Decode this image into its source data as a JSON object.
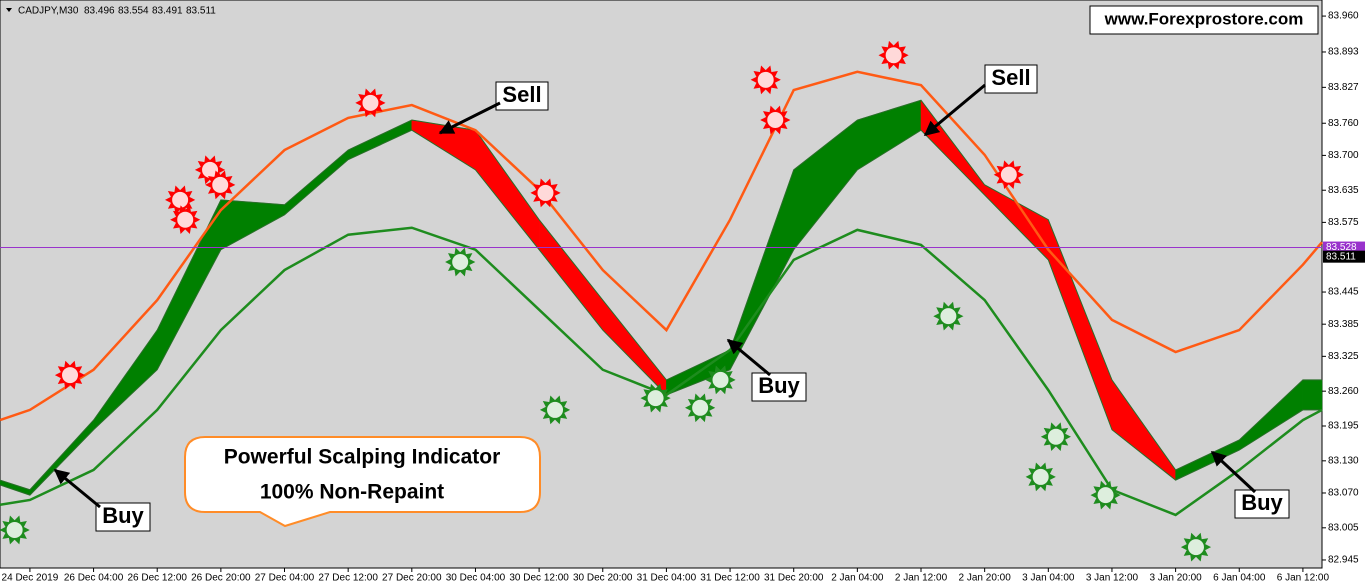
{
  "header": {
    "symbol": "CADJPY,M30",
    "open": 83.496,
    "high": 83.554,
    "low": 83.491,
    "close": 83.511
  },
  "chart_data": {
    "type": "indicator",
    "watermark": "www.Forexprostore.com",
    "annotations": {
      "sell_1": "Sell",
      "sell_2": "Sell",
      "buy_1": "Buy",
      "buy_2": "Buy",
      "buy_3": "Buy",
      "promo_line_1": "Powerful Scalping Indicator",
      "promo_line_2": "100% Non-Repaint"
    },
    "xlim": [
      -0.47,
      20.3
    ],
    "ylim": [
      82.93,
      83.99
    ],
    "xticks": [
      {
        "value": 0,
        "label": "24 Dec 2019"
      },
      {
        "value": 1,
        "label": "26 Dec 04:00"
      },
      {
        "value": 2,
        "label": "26 Dec 12:00"
      },
      {
        "value": 3,
        "label": "26 Dec 20:00"
      },
      {
        "value": 4,
        "label": "27 Dec 04:00"
      },
      {
        "value": 5,
        "label": "27 Dec 12:00"
      },
      {
        "value": 6,
        "label": "27 Dec 20:00"
      },
      {
        "value": 7,
        "label": "30 Dec 04:00"
      },
      {
        "value": 8,
        "label": "30 Dec 12:00"
      },
      {
        "value": 9,
        "label": "30 Dec 20:00"
      },
      {
        "value": 10,
        "label": "31 Dec 04:00"
      },
      {
        "value": 11,
        "label": "31 Dec 12:00"
      },
      {
        "value": 12,
        "label": "31 Dec 20:00"
      },
      {
        "value": 13,
        "label": "2 Jan 04:00"
      },
      {
        "value": 14,
        "label": "2 Jan 12:00"
      },
      {
        "value": 15,
        "label": "2 Jan 20:00"
      },
      {
        "value": 16,
        "label": "3 Jan 04:00"
      },
      {
        "value": 17,
        "label": "3 Jan 12:00"
      },
      {
        "value": 18,
        "label": "3 Jan 20:00"
      },
      {
        "value": 19,
        "label": "6 Jan 04:00"
      },
      {
        "value": 20,
        "label": "6 Jan 12:00"
      }
    ],
    "yticks": [
      {
        "value": 83.96,
        "label": "83.960"
      },
      83.893,
      83.827,
      {
        "value": 83.76,
        "label": "83.760"
      },
      {
        "value": 83.7,
        "label": "83.700"
      },
      83.635,
      83.575,
      83.445,
      83.385,
      83.325,
      {
        "value": 83.26,
        "label": "83.260"
      },
      83.195,
      {
        "value": 83.13,
        "label": "83.130"
      },
      {
        "value": 83.07,
        "label": "83.070"
      },
      83.005,
      82.945
    ],
    "price_line": 83.528,
    "price_line_color": "#9932cc",
    "bid": 83.511,
    "x": [
      -0.47,
      0,
      1,
      2,
      3,
      4,
      5,
      6,
      7,
      8,
      9,
      10,
      11,
      12,
      13,
      14,
      15,
      16,
      17,
      18,
      19,
      20,
      20.3
    ],
    "lines": [
      {
        "color": "#ff5a14",
        "values": [
          83.206,
          83.225,
          83.3,
          83.43,
          83.598,
          83.71,
          83.77,
          83.794,
          83.747,
          83.636,
          83.486,
          83.374,
          83.58,
          83.822,
          83.856,
          83.831,
          83.701,
          83.524,
          83.393,
          83.333,
          83.374,
          83.496,
          83.538
        ]
      },
      {
        "color": "#1e8c1e",
        "values": [
          83.048,
          83.057,
          83.113,
          83.225,
          83.374,
          83.486,
          83.552,
          83.565,
          83.524,
          83.412,
          83.3,
          83.253,
          83.337,
          83.505,
          83.561,
          83.533,
          83.43,
          83.262,
          83.076,
          83.029,
          83.113,
          83.206,
          83.225
        ]
      }
    ],
    "ribbon": {
      "upper": [
        83.094,
        83.076,
        83.206,
        83.374,
        83.617,
        83.608,
        83.71,
        83.766,
        83.747,
        83.58,
        83.43,
        83.281,
        83.337,
        83.673,
        83.766,
        83.803,
        83.645,
        83.58,
        83.281,
        83.113,
        83.169,
        83.281,
        83.281
      ],
      "lower": [
        83.085,
        83.066,
        83.188,
        83.3,
        83.524,
        83.589,
        83.692,
        83.747,
        83.673,
        83.524,
        83.374,
        83.253,
        83.3,
        83.524,
        83.673,
        83.747,
        83.626,
        83.505,
        83.188,
        83.094,
        83.15,
        83.225,
        83.225
      ],
      "colors": [
        "#008000",
        "#008000",
        "#008000",
        "#008000",
        "#008000",
        "#008000",
        "#008000",
        "#ff0000",
        "#ff0000",
        "#ff0000",
        "#ff0000",
        "#008000",
        "#008000",
        "#008000",
        "#008000",
        "#ff0000",
        "#ff0000",
        "#ff0000",
        "#ff0000",
        "#008000",
        "#008000",
        "#008000"
      ]
    },
    "sell_signals": {
      "color": "#ff0000",
      "x": [
        0.63,
        2.36,
        2.44,
        2.83,
        2.99,
        5.35,
        8.1,
        11.56,
        11.71,
        13.57,
        15.38
      ],
      "values": [
        83.29,
        83.617,
        83.58,
        83.673,
        83.645,
        83.798,
        83.63,
        83.841,
        83.766,
        83.887,
        83.664
      ]
    },
    "buy_signals": {
      "color": "#1e8c1e",
      "x": [
        -0.24,
        6.76,
        8.25,
        9.83,
        10.53,
        10.85,
        14.43,
        15.88,
        16.12,
        16.9,
        18.32
      ],
      "values": [
        83.001,
        83.501,
        83.225,
        83.247,
        83.229,
        83.281,
        83.4,
        83.1,
        83.175,
        83.066,
        82.969
      ]
    }
  }
}
